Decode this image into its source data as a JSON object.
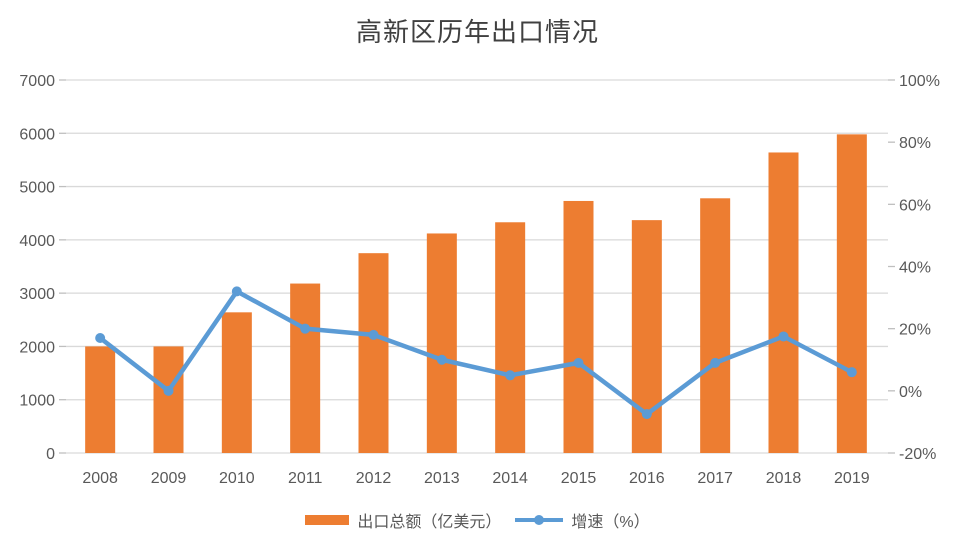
{
  "title": "高新区历年出口情况",
  "colors": {
    "bar": "#ED7D31",
    "line": "#5B9BD5",
    "grid": "#D9D9D9",
    "tick": "#BFBFBF",
    "axis_text": "#595959",
    "title_text": "#404040",
    "background": "#FFFFFF"
  },
  "chart_data": {
    "type": "bar",
    "title": "高新区历年出口情况",
    "categories": [
      "2008",
      "2009",
      "2010",
      "2011",
      "2012",
      "2013",
      "2014",
      "2015",
      "2016",
      "2017",
      "2018",
      "2019"
    ],
    "series": [
      {
        "name": "出口总额（亿美元）",
        "type": "bar",
        "axis": "left",
        "color": "#ED7D31",
        "values": [
          2000,
          2000,
          2640,
          3180,
          3750,
          4120,
          4330,
          4730,
          4370,
          4780,
          5640,
          5980
        ]
      },
      {
        "name": "增速（%）",
        "type": "line",
        "axis": "right",
        "color": "#5B9BD5",
        "values": [
          17,
          0,
          32,
          20,
          18,
          10,
          5,
          9,
          -7.5,
          9,
          17.5,
          6
        ]
      }
    ],
    "left_axis": {
      "min": 0,
      "max": 7000,
      "step": 1000,
      "ticks": [
        "0",
        "1000",
        "2000",
        "3000",
        "4000",
        "5000",
        "6000",
        "7000"
      ]
    },
    "right_axis": {
      "min": -20,
      "max": 100,
      "step": 20,
      "ticks": [
        "-20%",
        "0%",
        "20%",
        "40%",
        "60%",
        "80%",
        "100%"
      ]
    },
    "grid": "horizontal-only",
    "legend_position": "bottom"
  },
  "legend": {
    "bar_label": "出口总额（亿美元）",
    "line_label": "增速（%）"
  }
}
